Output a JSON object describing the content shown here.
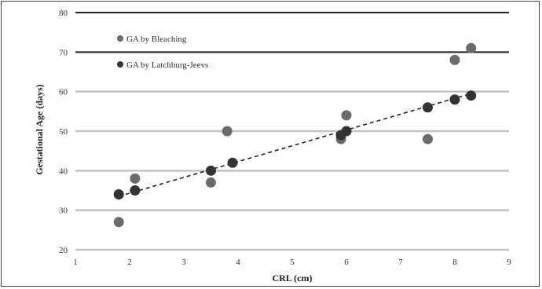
{
  "chart_data": {
    "type": "scatter",
    "title": "",
    "xlabel": "CRL (cm)",
    "ylabel": "Gestational Age (days)",
    "xlim": [
      1,
      9
    ],
    "ylim": [
      20,
      80
    ],
    "xticks": [
      "1",
      "2",
      "3",
      "4",
      "5",
      "6",
      "7",
      "8",
      "9"
    ],
    "yticks": [
      "20",
      "30",
      "40",
      "50",
      "60",
      "70",
      "80"
    ],
    "grid": "horizontal",
    "legend_position": "top-left",
    "series": [
      {
        "name": "GA by Bleaching",
        "color": "#6b6b6b",
        "marker": "circle",
        "x": [
          1.8,
          2.1,
          3.5,
          3.8,
          5.9,
          6.0,
          7.5,
          8.0,
          8.3
        ],
        "y": [
          27,
          38,
          37,
          50,
          48,
          54,
          48,
          68,
          71
        ]
      },
      {
        "name": "GA by Latchburg-Jeevs",
        "color": "#333333",
        "marker": "circle",
        "x": [
          1.8,
          2.1,
          3.5,
          3.9,
          5.9,
          6.0,
          7.5,
          8.0,
          8.3
        ],
        "y": [
          34,
          35,
          40,
          42,
          49,
          50,
          56,
          58,
          59
        ]
      }
    ],
    "trendline": {
      "style": "dashed",
      "color": "#222222",
      "x": [
        1.8,
        8.3
      ],
      "y": [
        33.5,
        59.5
      ]
    }
  }
}
